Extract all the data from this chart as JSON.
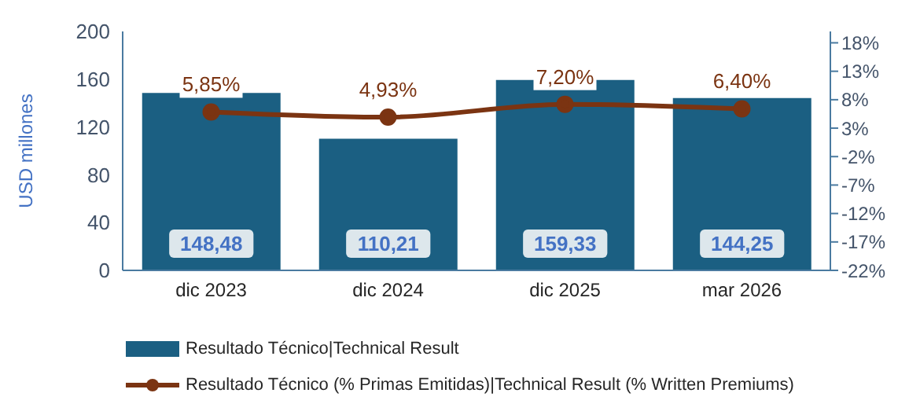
{
  "chart_data": {
    "type": "bar",
    "categories": [
      "dic 2023",
      "dic 2024",
      "dic 2025",
      "mar 2026"
    ],
    "ylabel": "USD millones",
    "ylim": [
      0,
      200
    ],
    "yticks": [
      0,
      40,
      80,
      120,
      160,
      200
    ],
    "y2lim": [
      -22,
      20
    ],
    "y2ticks": [
      {
        "value": -22,
        "label": "-22%"
      },
      {
        "value": -17,
        "label": "-17%"
      },
      {
        "value": -12,
        "label": "-12%"
      },
      {
        "value": -7,
        "label": "-7%"
      },
      {
        "value": -2,
        "label": "-2%"
      },
      {
        "value": 3,
        "label": "3%"
      },
      {
        "value": 8,
        "label": "8%"
      },
      {
        "value": 13,
        "label": "13%"
      },
      {
        "value": 18,
        "label": "18%"
      }
    ],
    "grid": false,
    "legend": "bottom left",
    "series": [
      {
        "name": "Resultado Técnico|Technical Result",
        "color": "#1b5f82",
        "values": [
          148.48,
          110.21,
          159.33,
          144.25
        ],
        "value_labels": [
          "148,48",
          "110,21",
          "159,33",
          "144,25"
        ]
      },
      {
        "name": "Resultado Técnico (% Primas Emitidas)|Technical Result (% Written Premiums)",
        "type": "line",
        "axis": "y2",
        "color": "#7b3412",
        "marker": "circle",
        "values": [
          5.85,
          4.93,
          7.2,
          6.4
        ],
        "value_labels": [
          "5,85%",
          "4,93%",
          "7,20%",
          "6,40%"
        ]
      }
    ]
  }
}
